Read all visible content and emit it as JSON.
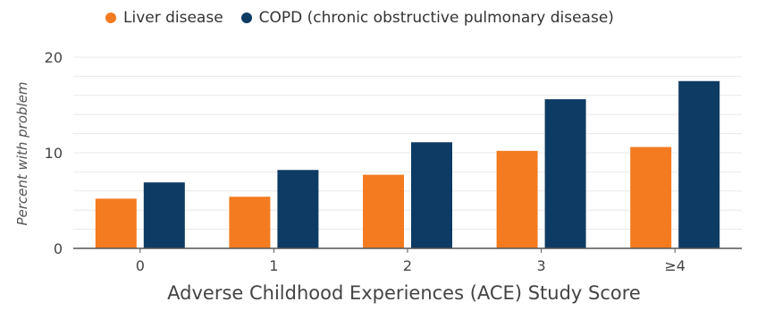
{
  "chart_data": {
    "type": "bar",
    "categories": [
      "0",
      "1",
      "2",
      "3",
      "≥4"
    ],
    "series": [
      {
        "name": "Liver disease",
        "color": "#F47B20",
        "values": [
          5.2,
          5.4,
          7.7,
          10.2,
          10.6
        ]
      },
      {
        "name": "COPD (chronic obstructive pulmonary disease)",
        "color": "#0E3B63",
        "values": [
          6.9,
          8.2,
          11.1,
          15.6,
          17.5
        ]
      }
    ],
    "title": "",
    "xlabel": "Adverse Childhood Experiences (ACE) Study Score",
    "ylabel": "Percent with problem",
    "ylim": [
      0,
      20
    ],
    "yticks": [
      0,
      10,
      20
    ],
    "grid": true,
    "legend_position": "top"
  }
}
